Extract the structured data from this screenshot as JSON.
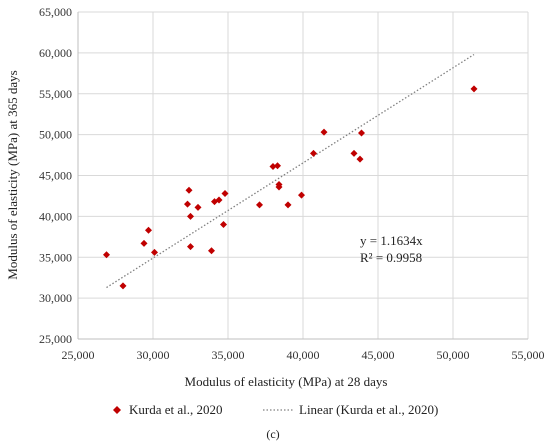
{
  "chart_data": {
    "type": "scatter",
    "xlabel": "Modulus of elasticity (MPa) at 28 days",
    "ylabel": "Modulus of elasticity (MPa) at 365 days",
    "xlim": [
      25000,
      55000
    ],
    "ylim": [
      25000,
      65000
    ],
    "x_ticks": [
      "25,000",
      "30,000",
      "35,000",
      "40,000",
      "45,000",
      "50,000",
      "55,000"
    ],
    "y_ticks": [
      "25,000",
      "30,000",
      "35,000",
      "40,000",
      "45,000",
      "50,000",
      "55,000",
      "60,000",
      "65,000"
    ],
    "grid": true,
    "series": [
      {
        "name": "Kurda et al., 2020",
        "color": "#c00000",
        "marker": "diamond",
        "points": [
          [
            26900,
            35300
          ],
          [
            28000,
            31500
          ],
          [
            29400,
            36700
          ],
          [
            29700,
            38300
          ],
          [
            30100,
            35600
          ],
          [
            32300,
            41500
          ],
          [
            32400,
            43200
          ],
          [
            32500,
            40000
          ],
          [
            32500,
            36300
          ],
          [
            33000,
            41100
          ],
          [
            33900,
            35800
          ],
          [
            34100,
            41800
          ],
          [
            34400,
            42000
          ],
          [
            34700,
            39000
          ],
          [
            34800,
            42800
          ],
          [
            37100,
            41400
          ],
          [
            38000,
            46100
          ],
          [
            38300,
            46200
          ],
          [
            38400,
            43900
          ],
          [
            38400,
            43600
          ],
          [
            39000,
            41400
          ],
          [
            39900,
            42600
          ],
          [
            40700,
            47700
          ],
          [
            41400,
            50300
          ],
          [
            43400,
            47700
          ],
          [
            43800,
            47000
          ],
          [
            43900,
            50200
          ],
          [
            51400,
            55600
          ]
        ]
      }
    ],
    "trendline": {
      "name": "Linear (Kurda et al., 2020)",
      "color": "#808080",
      "slope": 1.1634,
      "x_range": [
        26900,
        51400
      ]
    },
    "annotations": {
      "equation": "y = 1.1634x",
      "r2": "R² = 0.9958"
    },
    "legend": {
      "placement": "bottom",
      "entries": [
        "Kurda et al., 2020",
        "Linear (Kurda et al., 2020)"
      ]
    },
    "panel_label": "(c)"
  }
}
